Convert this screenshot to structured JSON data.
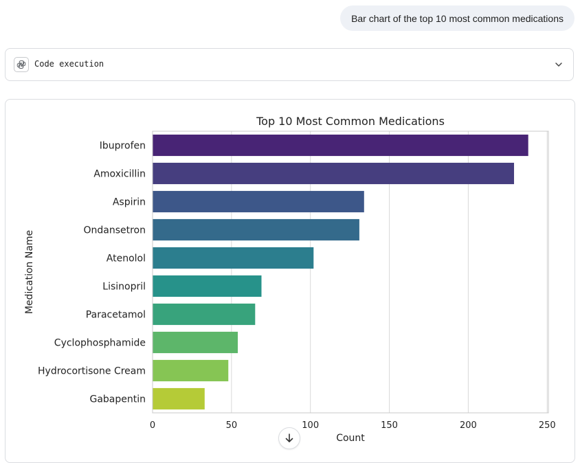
{
  "user_message": "Bar chart of the top 10 most common medications",
  "code_panel": {
    "label": "Code execution",
    "icon": "python-icon",
    "toggle_icon": "chevron-down-icon"
  },
  "scroll_button": {
    "icon": "arrow-down-icon"
  },
  "chart_data": {
    "type": "bar",
    "orientation": "horizontal",
    "title": "Top 10 Most Common Medications",
    "xlabel": "Count",
    "ylabel": "Medication Name",
    "categories": [
      "Ibuprofen",
      "Amoxicillin",
      "Aspirin",
      "Ondansetron",
      "Atenolol",
      "Lisinopril",
      "Paracetamol",
      "Cyclophosphamide",
      "Hydrocortisone Cream",
      "Gabapentin"
    ],
    "values": [
      238,
      229,
      134,
      131,
      102,
      69,
      65,
      54,
      48,
      33
    ],
    "colors": [
      "#482475",
      "#463e7f",
      "#3d5789",
      "#346a8b",
      "#2c7e8e",
      "#27928a",
      "#38a37c",
      "#5db66a",
      "#86c554",
      "#b5cb37"
    ],
    "xticks": [
      0,
      50,
      100,
      150,
      200,
      250
    ],
    "xlim": [
      0,
      250
    ],
    "grid": true
  }
}
